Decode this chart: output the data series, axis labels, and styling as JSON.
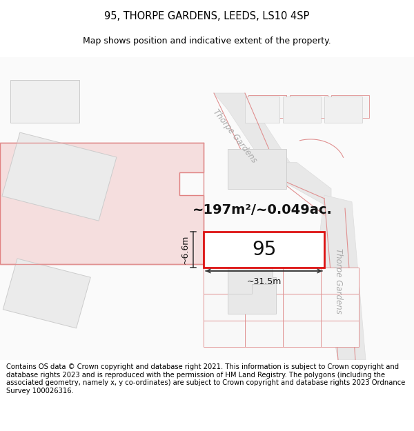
{
  "title_line1": "95, THORPE GARDENS, LEEDS, LS10 4SP",
  "title_line2": "Map shows position and indicative extent of the property.",
  "footer_text": "Contains OS data © Crown copyright and database right 2021. This information is subject to Crown copyright and database rights 2023 and is reproduced with the permission of HM Land Registry. The polygons (including the associated geometry, namely x, y co-ordinates) are subject to Crown copyright and database rights 2023 Ordnance Survey 100026316.",
  "area_text": "~197m²/~0.049ac.",
  "plot_number": "95",
  "dim_width": "~31.5m",
  "dim_height": "~6.6m",
  "map_bg": "#ffffff",
  "large_parcel_fill": "#f5dede",
  "large_parcel_border": "#e08080",
  "plot_fill": "#ffffff",
  "plot_border": "#dd1111",
  "neighbour_fill": "#f0f0f0",
  "neighbour_border": "#e09090",
  "building_fill": "#e0e0e0",
  "building_border": "#cccccc",
  "road_label_color": "#aaaaaa",
  "dim_color": "#333333",
  "title_fontsize": 10.5,
  "subtitle_fontsize": 9,
  "footer_fontsize": 7.2,
  "area_fontsize": 14,
  "number_fontsize": 20
}
